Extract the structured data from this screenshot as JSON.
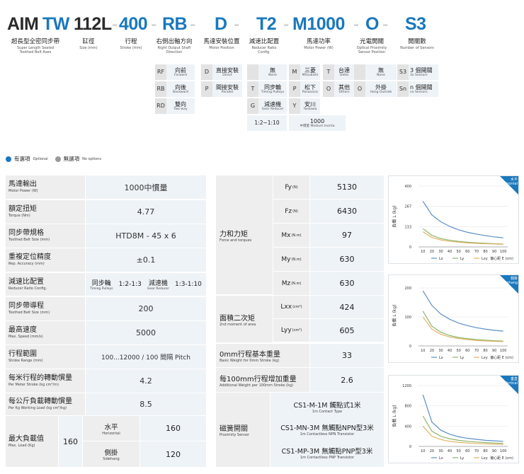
{
  "model_code": {
    "series_a": "AIM",
    "series_b": "TW",
    "size": "112L",
    "stroke": "400",
    "direction": "RB",
    "motor_pos": "D",
    "reducer": "T2",
    "motor": "M1000",
    "sensor_pos": "O",
    "sensors": "S3",
    "dash": "-"
  },
  "headers": [
    {
      "cn": "超長型全密同步帶",
      "en": "Super Length Sealed\nToothed Belt Axes"
    },
    {
      "cn": "缸徑",
      "en": "Size (mm)"
    },
    {
      "cn": "行程",
      "en": "Stroke (mm)"
    },
    {
      "cn": "右側出軸方向",
      "en": "Right Output Shaft\nDirection"
    },
    {
      "cn": "馬達安裝位置",
      "en": "Motor Position"
    },
    {
      "cn": "減速比配置",
      "en": "Reducer Ratio\nConfig."
    },
    {
      "cn": "馬達功率",
      "en": "Motor Power (W)"
    },
    {
      "cn": "光電開關",
      "en": "Optical Proximity\nSensor Position"
    },
    {
      "cn": "開關數",
      "en": "Number of Sensors"
    }
  ],
  "direction_options": [
    {
      "key": "RF",
      "cn": "向前",
      "en": "Forward"
    },
    {
      "key": "RB",
      "cn": "向後",
      "en": "Backward"
    },
    {
      "key": "RD",
      "cn": "雙向",
      "en": "Two-way"
    }
  ],
  "motor_pos_options": [
    {
      "key": "D",
      "cn": "直接安裝",
      "en": "Direct"
    },
    {
      "key": "P",
      "cn": "間接安裝",
      "en": "Parallel"
    }
  ],
  "reducer_options": [
    {
      "key": "",
      "cn": "無",
      "en": "None"
    },
    {
      "key": "T",
      "cn": "同步輪",
      "en": "Timing Pulleys"
    },
    {
      "key": "G",
      "cn": "減速機",
      "en": "Gear Reducer"
    }
  ],
  "reducer_ratio": "1:2~1:10",
  "motor_options": [
    {
      "key": "M",
      "cn": "三菱",
      "en": "Mitsubishi"
    },
    {
      "key": "T",
      "cn": "台達",
      "en": "Delta"
    },
    {
      "key": "P",
      "cn": "松下",
      "en": "Panasonic"
    },
    {
      "key": "O",
      "cn": "其他",
      "en": "Others"
    },
    {
      "key": "Y",
      "cn": "安川",
      "en": "Yaskawa"
    }
  ],
  "motor_inertia": {
    "value": "1000",
    "note": "中慣量 Medium Inertia"
  },
  "sensor_pos_options": [
    {
      "key": "",
      "cn": "無",
      "en": "None"
    },
    {
      "key": "O",
      "cn": "外掛",
      "en": "Hang Outside"
    }
  ],
  "sensor_count_options": [
    {
      "key": "S3",
      "cn": "3 個開關",
      "en": "3x Sensors"
    },
    {
      "key": "Sn",
      "cn": "n 個開關",
      "en": "nx Sensors"
    }
  ],
  "legend": {
    "optional_cn": "有選項",
    "optional_en": "Optional",
    "none_cn": "無選項",
    "none_en": "No options",
    "optional_color": "#1a78bd",
    "none_color": "#9a9a9a"
  },
  "specs_left": [
    {
      "cn": "馬達輸出",
      "en": "Motor Power (W)",
      "value": "1000中慣量"
    },
    {
      "cn": "額定扭矩",
      "en": "Torque (Nm)",
      "value": "4.77"
    },
    {
      "cn": "同步帶規格",
      "en": "Toothed Belt Size (mm)",
      "value": "HTD8M - 45 x 6"
    },
    {
      "cn": "重複定位精度",
      "en": "Rep. Accuracy (mm)",
      "value": "±0.1"
    },
    {
      "cn": "減速比配置",
      "en": "Reducer Ratio Config.",
      "value": ""
    },
    {
      "cn": "同步帶導程",
      "en": "Toothed Belt Size (mm)",
      "value": "200"
    },
    {
      "cn": "最高速度",
      "en": "Max. Speed (mm/s)",
      "value": "5000"
    },
    {
      "cn": "行程範圍",
      "en": "Stroke Range (mm)",
      "value": "100...12000 / 100 間隔 Pitch"
    },
    {
      "cn": "每米行程的轉動慣量",
      "en": "Per Meter Stroke (kg cm²/m)",
      "value": "4.2"
    },
    {
      "cn": "每公斤負載轉動慣量",
      "en": "Per Kg Working Load (kg cm²/kg)",
      "value": "8.5"
    }
  ],
  "reducer_cell": {
    "pulley_cn": "同步輪",
    "pulley_en": "Timing Pulleys",
    "pulley_ratio": "1:2-1:3",
    "gear_cn": "減速機",
    "gear_en": "Gear Reducer",
    "gear_ratio": "1:3-1:10"
  },
  "max_load": {
    "cn": "最大負載值",
    "en": "Max. Load (Kg)",
    "value": "160",
    "horizontal_cn": "水平",
    "horizontal_en": "Horizontal",
    "horizontal_value": "160",
    "sidehang_cn": "側掛",
    "sidehang_en": "Sidehang",
    "sidehang_value": "120"
  },
  "force_group": {
    "cn": "力和力矩",
    "en": "Force and torques"
  },
  "forces": [
    {
      "sym": "Fy",
      "unit": "(N)",
      "value": "5130"
    },
    {
      "sym": "Fz",
      "unit": "(N)",
      "value": "6430"
    },
    {
      "sym": "Mx",
      "unit": "(N.m)",
      "value": "97"
    },
    {
      "sym": "My",
      "unit": "(N.m)",
      "value": "630"
    },
    {
      "sym": "Mz",
      "unit": "(N.m)",
      "value": "630"
    }
  ],
  "area_group": {
    "cn": "面積二次矩",
    "en": "2nd moment of area"
  },
  "area": [
    {
      "sym": "Lxx",
      "unit": "(cm⁴)",
      "value": "424"
    },
    {
      "sym": "Lyy",
      "unit": "(cm⁴)",
      "value": "605"
    }
  ],
  "base_weight": {
    "cn": "0mm行程基本重量",
    "en": "Basic Weight for 0mm Stroke (kg)",
    "value": "33"
  },
  "added_weight": {
    "cn": "每100mm行程增加重量",
    "en": "Additional Weight per 100mm Stroke (kg)",
    "value": "2.6"
  },
  "proximity": {
    "cn": "磁簧開關",
    "en": "Proximity Sensor",
    "items": [
      {
        "cn": "CS1-M-1M 觸點式1米",
        "en": "1m Contact Type"
      },
      {
        "cn": "CS1-MN-3M 無觸點NPN型3米",
        "en": "1m Contactless NPN Transistor"
      },
      {
        "cn": "CS1-MP-3M 無觸點PNP型3米",
        "en": "1m Contactless PNP Transistor"
      }
    ]
  },
  "chart_data": [
    {
      "type": "line",
      "corner_label": "水平",
      "corner_sub": "Horizontal",
      "ylabel": "負載 L (kg)",
      "xlabel": "偏心距 E (cm)",
      "x": [
        10,
        20,
        30,
        40,
        50,
        60,
        70,
        80,
        90,
        100
      ],
      "yticks": [
        0,
        133,
        267,
        400
      ],
      "ylim": [
        0,
        400
      ],
      "series": [
        {
          "name": "Lx",
          "color": "#5a8fc6",
          "values": [
            300,
            210,
            165,
            135,
            112,
            96,
            84,
            74,
            66,
            60
          ]
        },
        {
          "name": "Ly",
          "color": "#8fb56a",
          "values": [
            120,
            76,
            55,
            44,
            36,
            31,
            27,
            24,
            21,
            19
          ]
        },
        {
          "name": "Lxy",
          "color": "#e0b466",
          "values": [
            100,
            62,
            46,
            37,
            31,
            26,
            23,
            21,
            19,
            17
          ]
        }
      ]
    },
    {
      "type": "line",
      "corner_label": "側掛",
      "corner_sub": "Sidehang",
      "ylabel": "負載 L (kg)",
      "xlabel": "偏心距 E (cm)",
      "x": [
        10,
        20,
        30,
        40,
        50,
        60,
        70,
        80,
        90,
        100
      ],
      "yticks": [
        0,
        100,
        200
      ],
      "ylim": [
        0,
        210
      ],
      "series": [
        {
          "name": "Lx",
          "color": "#5a8fc6",
          "values": [
            190,
            140,
            110,
            92,
            79,
            70,
            63,
            58,
            54,
            51
          ]
        },
        {
          "name": "Ly",
          "color": "#8fb56a",
          "values": [
            120,
            68,
            47,
            36,
            29,
            25,
            22,
            20,
            18,
            17
          ]
        },
        {
          "name": "Lxy",
          "color": "#e0b466",
          "values": [
            100,
            58,
            40,
            31,
            26,
            22,
            19,
            17,
            16,
            15
          ]
        }
      ]
    },
    {
      "type": "line",
      "corner_label": "垂直",
      "corner_sub": "Vertical",
      "ylabel": "負載 L (kg)",
      "xlabel": "偏心距 E (cm)",
      "x": [
        10,
        20,
        30,
        40,
        50,
        60,
        70,
        80,
        90,
        100
      ],
      "yticks": [
        0,
        400,
        800,
        1200
      ],
      "ylim": [
        0,
        1200
      ],
      "series": [
        {
          "name": "Lx",
          "color": "#5a8fc6",
          "values": [
            1020,
            480,
            320,
            240,
            190,
            160,
            140,
            120,
            110,
            100
          ]
        },
        {
          "name": "Ly",
          "color": "#8fb56a",
          "values": [
            600,
            300,
            200,
            150,
            120,
            100,
            86,
            75,
            67,
            60
          ]
        },
        {
          "name": "Lxy",
          "color": "#e0b466",
          "values": [
            400,
            200,
            135,
            100,
            80,
            67,
            57,
            50,
            45,
            40
          ]
        }
      ]
    }
  ]
}
